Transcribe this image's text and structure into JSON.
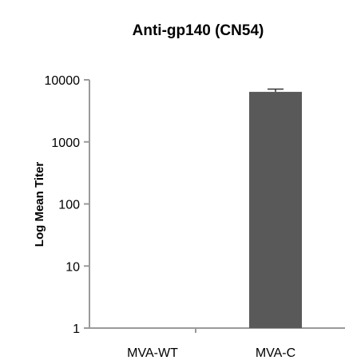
{
  "chart_data": {
    "type": "bar",
    "title": "Anti-gp140 (CN54)",
    "xlabel": "",
    "ylabel": "Log Mean Titer",
    "y_scale": "log",
    "ylim": [
      1,
      10000
    ],
    "yticks": [
      1,
      10,
      100,
      1000,
      10000
    ],
    "ytick_labels": [
      "1",
      "10",
      "100",
      "1000",
      "10000"
    ],
    "categories": [
      "MVA-WT",
      "MVA-C"
    ],
    "values": [
      1,
      6400
    ],
    "error_upper": [
      0,
      7100
    ],
    "bar_color": "#595959",
    "axis_color": "#9a9a9a",
    "grid": false,
    "legend": "none"
  }
}
